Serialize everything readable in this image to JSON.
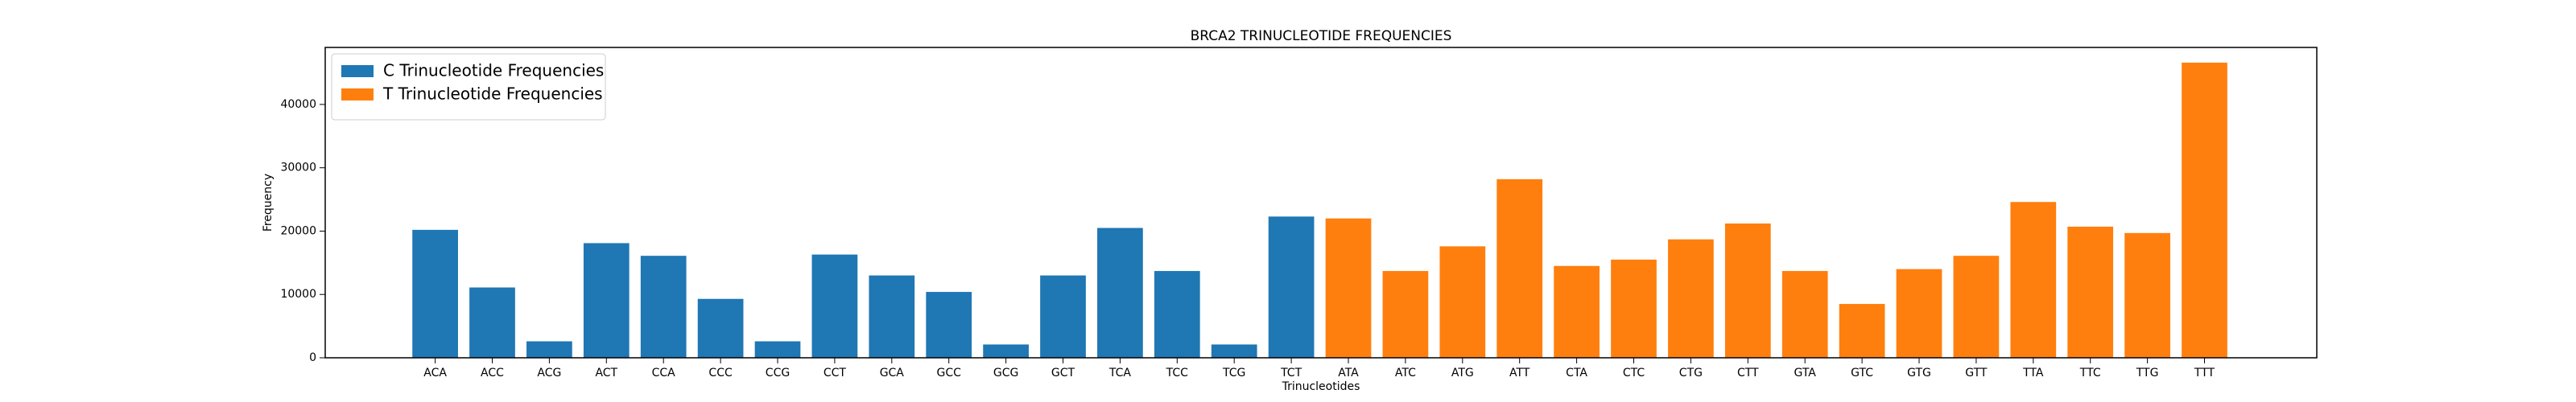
{
  "chart_data": {
    "type": "bar",
    "title": "BRCA2 TRINUCLEOTIDE FREQUENCIES",
    "x_label": "Trinucleotides",
    "y_label": "Frequency",
    "categories": [
      "ACA",
      "ACC",
      "ACG",
      "ACT",
      "CCA",
      "CCC",
      "CCG",
      "CCT",
      "GCA",
      "GCC",
      "GCG",
      "GCT",
      "TCA",
      "TCC",
      "TCG",
      "TCT",
      "ATA",
      "ATC",
      "ATG",
      "ATT",
      "CTA",
      "CTC",
      "CTG",
      "CTT",
      "GTA",
      "GTC",
      "GTG",
      "GTT",
      "TTA",
      "TTC",
      "TTG",
      "TTT"
    ],
    "series": [
      {
        "name": "C Trinucleotide Frequencies",
        "color": "#1f77b4",
        "values": [
          20200,
          11100,
          2600,
          18100,
          16100,
          9300,
          2600,
          16300,
          13000,
          10400,
          2100,
          13000,
          20500,
          13700,
          2100,
          22300,
          null,
          null,
          null,
          null,
          null,
          null,
          null,
          null,
          null,
          null,
          null,
          null,
          null,
          null,
          null,
          null
        ]
      },
      {
        "name": "T Trinucleotide Frequencies",
        "color": "#ff7f0e",
        "values": [
          null,
          null,
          null,
          null,
          null,
          null,
          null,
          null,
          null,
          null,
          null,
          null,
          null,
          null,
          null,
          null,
          22000,
          13700,
          17600,
          28200,
          14500,
          15500,
          18700,
          21200,
          13700,
          8500,
          14000,
          16100,
          24600,
          20700,
          19700,
          46600
        ]
      }
    ],
    "ylim": [
      0,
      49000
    ],
    "yticks": [
      0,
      10000,
      20000,
      30000,
      40000
    ],
    "legend": "upper left",
    "grid": false
  }
}
